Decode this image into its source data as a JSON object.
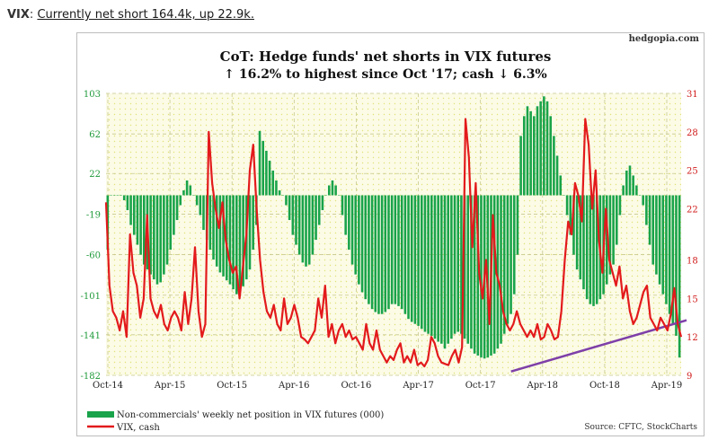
{
  "header": {
    "ticker": "VIX",
    "separator": ":",
    "link_text": "Currently net short 164.4k, up 22.9k."
  },
  "chart_data": {
    "type": "bar+line",
    "title": "CoT: Hedge funds' net shorts in VIX futures",
    "subtitle": "↑ 16.2% to highest since Oct '17; cash ↓ 6.3%",
    "brand": "hedgopia.com",
    "source": "Source: CFTC, StockCharts",
    "x_tick_labels": [
      "Oct-14",
      "Apr-15",
      "Oct-15",
      "Apr-16",
      "Oct-16",
      "Apr-17",
      "Oct-17",
      "Apr-18",
      "Oct-18",
      "Apr-19"
    ],
    "left_axis": {
      "ticks": [
        103,
        62,
        22,
        -19,
        -60,
        -101,
        -141,
        -182
      ],
      "ylim": [
        -182,
        103
      ]
    },
    "right_axis": {
      "ticks": [
        31,
        28,
        25,
        22,
        18,
        15,
        12,
        9
      ],
      "ylim": [
        9,
        31
      ]
    },
    "legend": {
      "bars_label": "Non-commercials' weekly net position in VIX futures (000)",
      "line_label": "VIX, cash",
      "placement": "bottom-left"
    },
    "colors": {
      "bars": "#19a34a",
      "line": "#e31a1c",
      "trend": "#7e3fa8",
      "tick_left": "#1f9a3a",
      "tick_right": "#d11a1a",
      "grid": "#d9d9a0"
    },
    "bar_series": {
      "name": "Non-commercials' weekly net position in VIX futures (000)",
      "values": [
        -55,
        0,
        0,
        0,
        0,
        -5,
        -15,
        -30,
        -40,
        -50,
        -60,
        -70,
        -75,
        -80,
        -85,
        -90,
        -88,
        -80,
        -70,
        -55,
        -40,
        -25,
        -10,
        5,
        15,
        10,
        0,
        -10,
        -20,
        -35,
        -45,
        -55,
        -65,
        -72,
        -78,
        -82,
        -86,
        -90,
        -95,
        -100,
        -98,
        -92,
        -85,
        -75,
        -55,
        -30,
        65,
        55,
        45,
        35,
        25,
        15,
        5,
        0,
        -10,
        -25,
        -40,
        -50,
        -60,
        -68,
        -72,
        -70,
        -60,
        -45,
        -30,
        -15,
        0,
        10,
        15,
        10,
        0,
        -20,
        -40,
        -55,
        -70,
        -80,
        -90,
        -98,
        -105,
        -110,
        -115,
        -118,
        -120,
        -120,
        -118,
        -115,
        -110,
        -110,
        -112,
        -115,
        -120,
        -125,
        -128,
        -130,
        -132,
        -135,
        -138,
        -140,
        -142,
        -145,
        -148,
        -150,
        -155,
        -150,
        -145,
        -140,
        -138,
        -140,
        -145,
        -150,
        -155,
        -160,
        -162,
        -164,
        -165,
        -164,
        -162,
        -160,
        -155,
        -150,
        -140,
        -130,
        -120,
        -100,
        -60,
        60,
        80,
        90,
        85,
        80,
        90,
        95,
        100,
        95,
        80,
        60,
        40,
        20,
        0,
        -20,
        -40,
        -60,
        -75,
        -85,
        -95,
        -105,
        -110,
        -112,
        -110,
        -105,
        -100,
        -90,
        -80,
        -70,
        -50,
        -20,
        10,
        25,
        30,
        20,
        10,
        0,
        -10,
        -30,
        -50,
        -70,
        -80,
        -90,
        -100,
        -110,
        -120,
        -130,
        -142,
        -164
      ]
    },
    "line_series": {
      "name": "VIX, cash",
      "values": [
        22.5,
        16,
        14,
        13.5,
        12.5,
        14,
        12,
        20,
        17,
        16,
        13.5,
        15,
        21.5,
        15,
        14,
        13.5,
        14.5,
        13,
        12.5,
        13.5,
        14,
        13.5,
        12.5,
        15.5,
        13,
        15,
        19,
        14,
        12,
        13,
        28,
        24,
        22,
        20.5,
        22.5,
        19.5,
        18,
        17,
        17.5,
        15,
        17.5,
        20,
        25,
        27,
        22,
        18,
        15.5,
        14,
        13.5,
        14.5,
        13,
        12.5,
        15,
        13,
        13.5,
        14.5,
        13.5,
        12,
        11.8,
        11.5,
        12,
        12.5,
        15,
        13.5,
        16,
        12,
        13,
        11.5,
        12.5,
        13,
        12,
        12.5,
        11.8,
        12,
        11.5,
        11,
        13,
        11.5,
        11,
        12.5,
        11,
        10.5,
        10,
        10.5,
        10.2,
        11,
        11.5,
        10,
        10.5,
        10,
        11,
        9.8,
        10,
        9.7,
        10.2,
        12,
        11.5,
        10.5,
        10,
        9.9,
        9.8,
        10.5,
        11,
        10,
        11.2,
        29,
        26,
        19,
        24,
        17,
        15,
        18,
        13,
        21.5,
        17,
        16,
        14,
        13,
        12.5,
        13,
        14,
        13,
        12.5,
        12,
        12.5,
        12,
        13,
        11.8,
        12,
        13,
        12.5,
        11.8,
        12,
        14,
        18,
        21,
        20,
        24,
        23,
        21,
        29,
        27,
        22,
        25,
        19.5,
        17,
        22,
        18,
        17,
        16,
        17.5,
        15,
        16,
        14,
        13,
        13.5,
        14.5,
        15.5,
        16,
        13.5,
        13,
        12.5,
        13.5,
        13,
        12.5,
        13.8,
        15.8,
        13,
        12
      ]
    },
    "trend_line": {
      "from_label": "Oct-17",
      "to_label": "Apr-19"
    }
  }
}
